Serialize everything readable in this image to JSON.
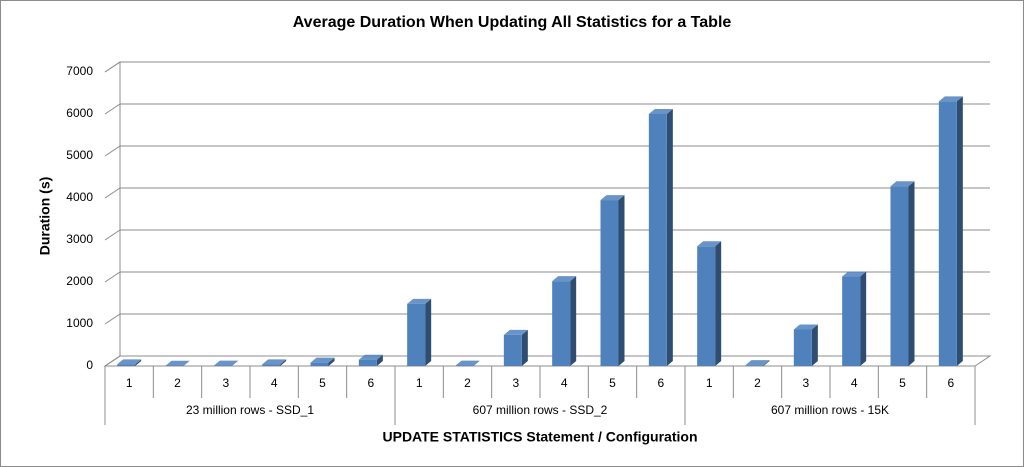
{
  "chart_data": {
    "type": "bar",
    "title": "Average Duration When Updating All Statistics for a Table",
    "y_label": "Duration  (s)",
    "x_label": "UPDATE STATISTICS Statement / Configuration",
    "categories": [
      "1",
      "2",
      "3",
      "4",
      "5",
      "6",
      "1",
      "2",
      "3",
      "4",
      "5",
      "6",
      "1",
      "2",
      "3",
      "4",
      "5",
      "6"
    ],
    "groups": [
      "23 million rows - SSD_1",
      "607 million rows - SSD_2",
      "607 million rows - 15K"
    ],
    "values": [
      40,
      5,
      10,
      40,
      80,
      150,
      1480,
      10,
      740,
      2020,
      3950,
      6000,
      2850,
      20,
      870,
      2130,
      4280,
      6300
    ],
    "color": "#4f81bd",
    "ylim": [
      0,
      7000
    ],
    "yticks": [
      0,
      1000,
      2000,
      3000,
      4000,
      5000,
      6000,
      7000
    ],
    "grid": true
  }
}
